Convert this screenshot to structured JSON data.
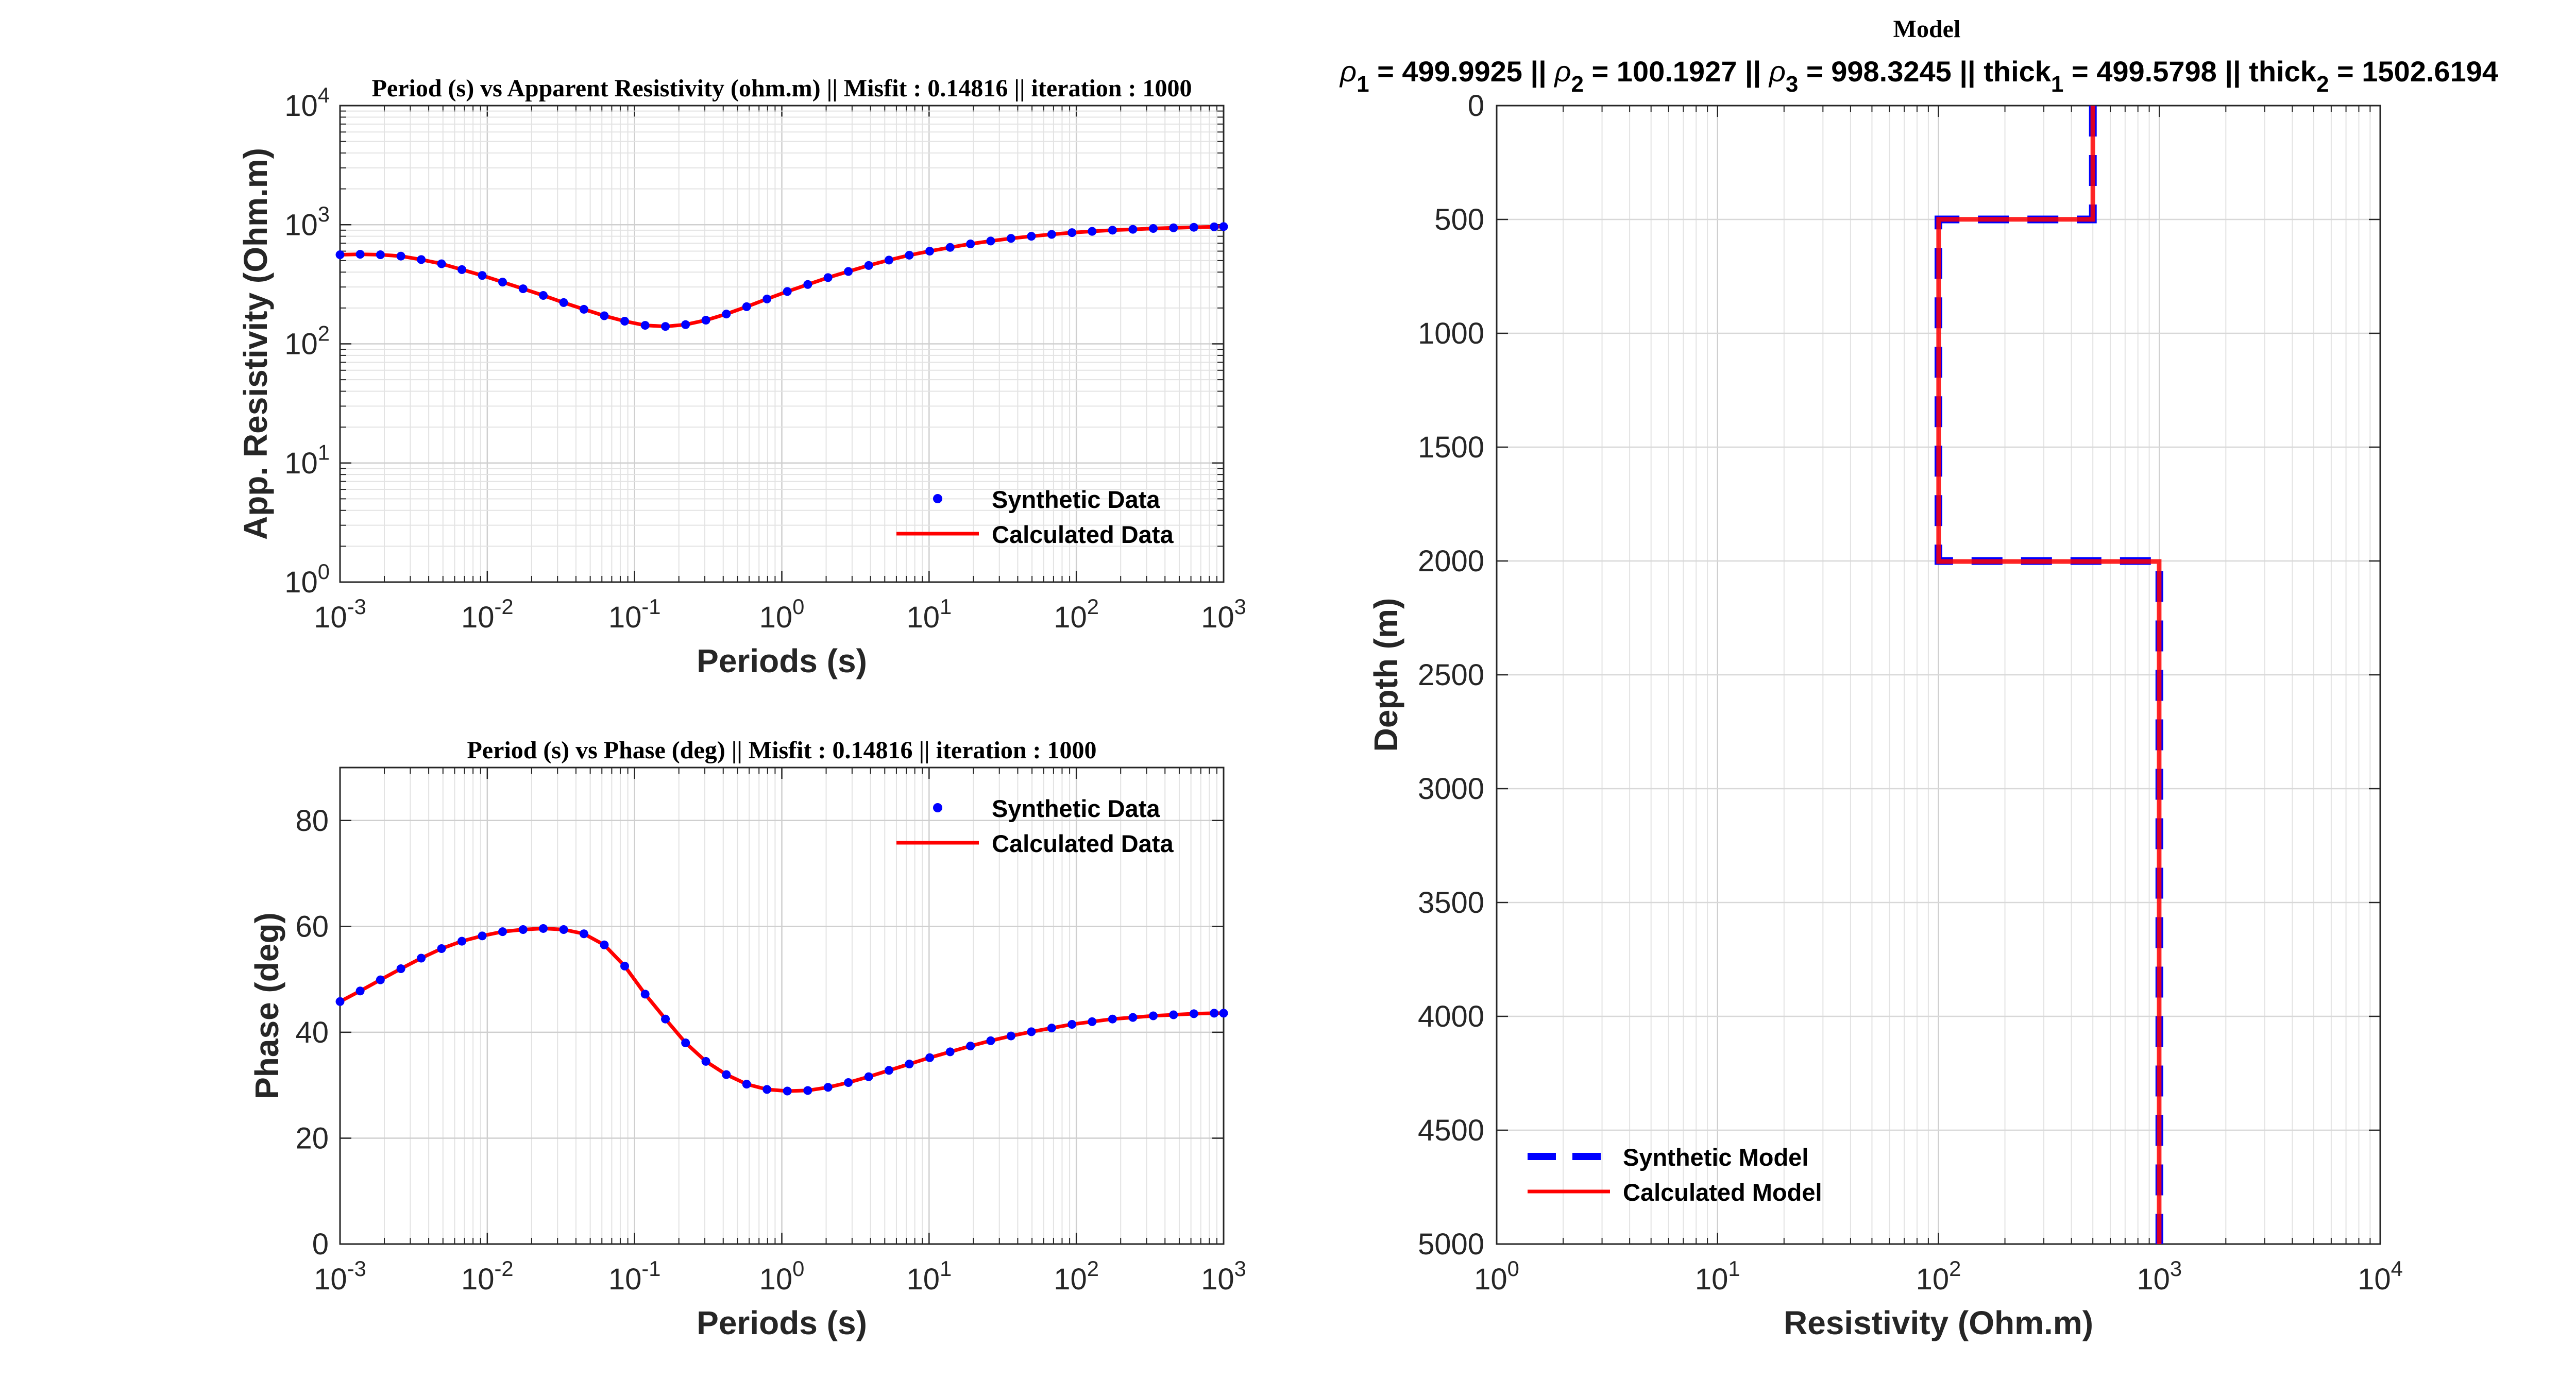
{
  "chart_data": [
    {
      "id": "resistivity",
      "type": "line",
      "title": "Period (s) vs Apparent Resistivity (ohm.m)  || Misfit : 0.14816 || iteration : 1000",
      "xlabel": "Periods (s)",
      "ylabel": "App. Resistivity (Ohm.m)",
      "xscale": "log",
      "yscale": "log",
      "xlim": [
        0.001,
        1000
      ],
      "ylim": [
        1,
        10000
      ],
      "xticks": [
        {
          "base": "10",
          "exp": "-3"
        },
        {
          "base": "10",
          "exp": "-2"
        },
        {
          "base": "10",
          "exp": "-1"
        },
        {
          "base": "10",
          "exp": "0"
        },
        {
          "base": "10",
          "exp": "1"
        },
        {
          "base": "10",
          "exp": "2"
        },
        {
          "base": "10",
          "exp": "3"
        }
      ],
      "yticks": [
        {
          "base": "10",
          "exp": "0"
        },
        {
          "base": "10",
          "exp": "1"
        },
        {
          "base": "10",
          "exp": "2"
        },
        {
          "base": "10",
          "exp": "3"
        },
        {
          "base": "10",
          "exp": "4"
        }
      ],
      "grid": true,
      "legend_position": "bottom-right",
      "series": [
        {
          "name": "Synthetic Data",
          "style": "markers",
          "color": "#0000ff"
        },
        {
          "name": "Calculated Data",
          "style": "line",
          "color": "#ff0000"
        }
      ],
      "points": [
        {
          "x": 0.001,
          "y": 560
        },
        {
          "x": 0.00137,
          "y": 565
        },
        {
          "x": 0.00188,
          "y": 560
        },
        {
          "x": 0.00259,
          "y": 545
        },
        {
          "x": 0.00356,
          "y": 510
        },
        {
          "x": 0.00489,
          "y": 470
        },
        {
          "x": 0.00672,
          "y": 420
        },
        {
          "x": 0.00924,
          "y": 375
        },
        {
          "x": 0.0127,
          "y": 330
        },
        {
          "x": 0.0175,
          "y": 290
        },
        {
          "x": 0.024,
          "y": 255
        },
        {
          "x": 0.033,
          "y": 222
        },
        {
          "x": 0.0453,
          "y": 195
        },
        {
          "x": 0.0623,
          "y": 172
        },
        {
          "x": 0.0857,
          "y": 155
        },
        {
          "x": 0.118,
          "y": 143
        },
        {
          "x": 0.162,
          "y": 140
        },
        {
          "x": 0.222,
          "y": 145
        },
        {
          "x": 0.305,
          "y": 158
        },
        {
          "x": 0.42,
          "y": 178
        },
        {
          "x": 0.577,
          "y": 205
        },
        {
          "x": 0.793,
          "y": 238
        },
        {
          "x": 1.09,
          "y": 275
        },
        {
          "x": 1.5,
          "y": 315
        },
        {
          "x": 2.06,
          "y": 360
        },
        {
          "x": 2.83,
          "y": 405
        },
        {
          "x": 3.89,
          "y": 455
        },
        {
          "x": 5.34,
          "y": 505
        },
        {
          "x": 7.34,
          "y": 555
        },
        {
          "x": 10.1,
          "y": 600
        },
        {
          "x": 13.9,
          "y": 645
        },
        {
          "x": 19.1,
          "y": 690
        },
        {
          "x": 26.2,
          "y": 730
        },
        {
          "x": 36.0,
          "y": 768
        },
        {
          "x": 49.5,
          "y": 800
        },
        {
          "x": 68.0,
          "y": 830
        },
        {
          "x": 93.4,
          "y": 858
        },
        {
          "x": 128,
          "y": 880
        },
        {
          "x": 176,
          "y": 900
        },
        {
          "x": 242,
          "y": 915
        },
        {
          "x": 333,
          "y": 930
        },
        {
          "x": 457,
          "y": 942
        },
        {
          "x": 628,
          "y": 952
        },
        {
          "x": 863,
          "y": 960
        },
        {
          "x": 1000,
          "y": 965
        }
      ]
    },
    {
      "id": "phase",
      "type": "line",
      "title": "Period (s) vs Phase (deg)  || Misfit : 0.14816 || iteration : 1000",
      "xlabel": "Periods (s)",
      "ylabel": "Phase (deg)",
      "xscale": "log",
      "yscale": "linear",
      "xlim": [
        0.001,
        1000
      ],
      "ylim": [
        0,
        90
      ],
      "xticks": [
        {
          "base": "10",
          "exp": "-3"
        },
        {
          "base": "10",
          "exp": "-2"
        },
        {
          "base": "10",
          "exp": "-1"
        },
        {
          "base": "10",
          "exp": "0"
        },
        {
          "base": "10",
          "exp": "1"
        },
        {
          "base": "10",
          "exp": "2"
        },
        {
          "base": "10",
          "exp": "3"
        }
      ],
      "yticks": [
        0,
        20,
        40,
        60,
        80
      ],
      "grid": true,
      "legend_position": "top-right",
      "series": [
        {
          "name": "Synthetic Data",
          "style": "markers",
          "color": "#0000ff"
        },
        {
          "name": "Calculated Data",
          "style": "line",
          "color": "#ff0000"
        }
      ],
      "points": [
        {
          "x": 0.001,
          "y": 45.8
        },
        {
          "x": 0.00137,
          "y": 47.8
        },
        {
          "x": 0.00188,
          "y": 49.9
        },
        {
          "x": 0.00259,
          "y": 52.0
        },
        {
          "x": 0.00356,
          "y": 54.0
        },
        {
          "x": 0.00489,
          "y": 55.8
        },
        {
          "x": 0.00672,
          "y": 57.2
        },
        {
          "x": 0.00924,
          "y": 58.2
        },
        {
          "x": 0.0127,
          "y": 59.0
        },
        {
          "x": 0.0175,
          "y": 59.4
        },
        {
          "x": 0.024,
          "y": 59.6
        },
        {
          "x": 0.033,
          "y": 59.4
        },
        {
          "x": 0.0453,
          "y": 58.6
        },
        {
          "x": 0.0623,
          "y": 56.5
        },
        {
          "x": 0.0857,
          "y": 52.5
        },
        {
          "x": 0.118,
          "y": 47.2
        },
        {
          "x": 0.162,
          "y": 42.5
        },
        {
          "x": 0.222,
          "y": 38.0
        },
        {
          "x": 0.305,
          "y": 34.5
        },
        {
          "x": 0.42,
          "y": 32.0
        },
        {
          "x": 0.577,
          "y": 30.2
        },
        {
          "x": 0.793,
          "y": 29.2
        },
        {
          "x": 1.09,
          "y": 28.9
        },
        {
          "x": 1.5,
          "y": 29.0
        },
        {
          "x": 2.06,
          "y": 29.6
        },
        {
          "x": 2.83,
          "y": 30.5
        },
        {
          "x": 3.89,
          "y": 31.6
        },
        {
          "x": 5.34,
          "y": 32.8
        },
        {
          "x": 7.34,
          "y": 34.0
        },
        {
          "x": 10.1,
          "y": 35.2
        },
        {
          "x": 13.9,
          "y": 36.3
        },
        {
          "x": 19.1,
          "y": 37.4
        },
        {
          "x": 26.2,
          "y": 38.4
        },
        {
          "x": 36.0,
          "y": 39.3
        },
        {
          "x": 49.5,
          "y": 40.1
        },
        {
          "x": 68.0,
          "y": 40.8
        },
        {
          "x": 93.4,
          "y": 41.5
        },
        {
          "x": 128,
          "y": 42.0
        },
        {
          "x": 176,
          "y": 42.5
        },
        {
          "x": 242,
          "y": 42.8
        },
        {
          "x": 333,
          "y": 43.1
        },
        {
          "x": 457,
          "y": 43.3
        },
        {
          "x": 628,
          "y": 43.5
        },
        {
          "x": 863,
          "y": 43.6
        },
        {
          "x": 1000,
          "y": 43.6
        }
      ]
    },
    {
      "id": "model",
      "type": "line",
      "title": "Model",
      "subtitle_parts": [
        {
          "sym": "ρ",
          "sub": "1",
          "text": " = 499.9925 || "
        },
        {
          "sym": "ρ",
          "sub": "2",
          "text": " = 100.1927 || "
        },
        {
          "sym": "ρ",
          "sub": "3",
          "text": " = 998.3245 || "
        },
        {
          "sym": "thick",
          "sub": "1",
          "text": " = 499.5798 || "
        },
        {
          "sym": "thick",
          "sub": "2",
          "text": " = 1502.6194"
        }
      ],
      "xlabel": "Resistivity (Ohm.m)",
      "ylabel": "Depth (m)",
      "xscale": "log",
      "xlim": [
        1,
        10000
      ],
      "ylim": [
        0,
        5000
      ],
      "y_reversed": true,
      "xticks": [
        {
          "base": "10",
          "exp": "0"
        },
        {
          "base": "10",
          "exp": "1"
        },
        {
          "base": "10",
          "exp": "2"
        },
        {
          "base": "10",
          "exp": "3"
        },
        {
          "base": "10",
          "exp": "4"
        }
      ],
      "yticks": [
        0,
        500,
        1000,
        1500,
        2000,
        2500,
        3000,
        3500,
        4000,
        4500,
        5000
      ],
      "grid": true,
      "legend_position": "bottom-left",
      "series": [
        {
          "name": "Synthetic Model",
          "style": "dashed",
          "color": "#0000ff",
          "steps": [
            [
              500,
              0
            ],
            [
              500,
              500
            ],
            [
              100,
              500
            ],
            [
              100,
              2000
            ],
            [
              1000,
              2000
            ],
            [
              1000,
              5000
            ]
          ]
        },
        {
          "name": "Calculated Model",
          "style": "line",
          "color": "#ff0000",
          "steps": [
            [
              499.9925,
              0
            ],
            [
              499.9925,
              499.5798
            ],
            [
              100.1927,
              499.5798
            ],
            [
              100.1927,
              2002.1992
            ],
            [
              998.3245,
              2002.1992
            ],
            [
              998.3245,
              5000
            ]
          ]
        }
      ]
    }
  ]
}
